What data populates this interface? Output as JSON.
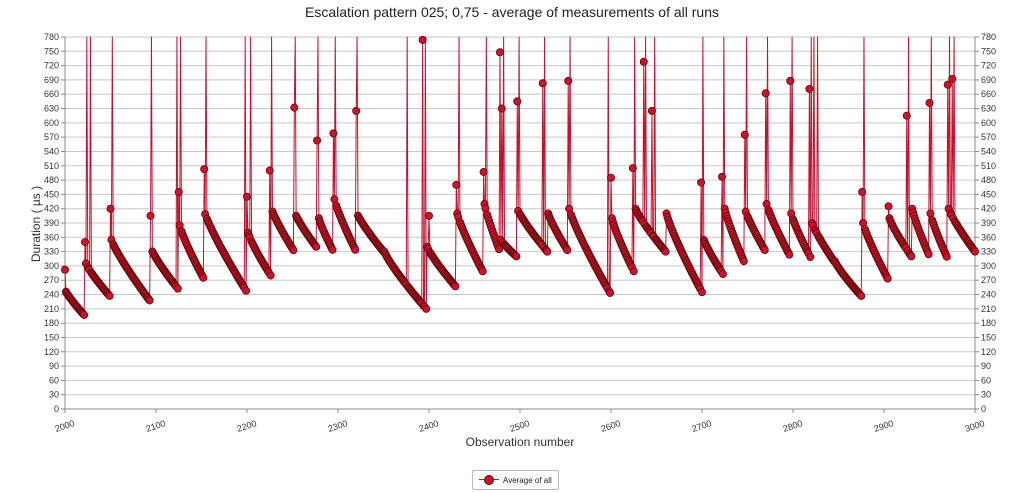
{
  "chart_data": {
    "type": "scatter",
    "title": "Escalation pattern 025; 0,75 - average of measurements of all runs",
    "xlabel": "Observation number",
    "ylabel": "Duration ( µs )",
    "xlim": [
      2000,
      3000
    ],
    "ylim": [
      0,
      780
    ],
    "x_ticks": [
      2000,
      2100,
      2200,
      2300,
      2400,
      2500,
      2600,
      2700,
      2800,
      2900,
      3000
    ],
    "y_ticks": [
      0,
      30,
      60,
      90,
      120,
      150,
      180,
      210,
      240,
      270,
      300,
      330,
      360,
      390,
      420,
      450,
      480,
      510,
      540,
      570,
      600,
      630,
      660,
      690,
      720,
      750,
      780
    ],
    "grid": "horizontal",
    "legend_position": "bottom",
    "colors": {
      "marker": "#d0112b",
      "line": "#c8102e",
      "marker_edge": "#5a0a0a"
    },
    "series": [
      {
        "name": "Average of all",
        "segments": [
          {
            "start": 2000,
            "end": 2022,
            "from": 250,
            "to": 195
          },
          {
            "start": 2023,
            "end": 2050,
            "from": 305,
            "to": 235
          },
          {
            "start": 2051,
            "end": 2094,
            "from": 355,
            "to": 225
          },
          {
            "start": 2095,
            "end": 2125,
            "from": 335,
            "to": 250
          },
          {
            "start": 2126,
            "end": 2152,
            "from": 385,
            "to": 275
          },
          {
            "start": 2153,
            "end": 2200,
            "from": 415,
            "to": 245
          },
          {
            "start": 2201,
            "end": 2226,
            "from": 370,
            "to": 280
          },
          {
            "start": 2227,
            "end": 2252,
            "from": 420,
            "to": 330
          },
          {
            "start": 2253,
            "end": 2278,
            "from": 410,
            "to": 335
          },
          {
            "start": 2279,
            "end": 2295,
            "from": 400,
            "to": 330
          },
          {
            "start": 2296,
            "end": 2320,
            "from": 440,
            "to": 330
          },
          {
            "start": 2321,
            "end": 2350,
            "from": 410,
            "to": 330
          },
          {
            "start": 2351,
            "end": 2397,
            "from": 330,
            "to": 210
          },
          {
            "start": 2398,
            "end": 2430,
            "from": 340,
            "to": 255
          },
          {
            "start": 2431,
            "end": 2460,
            "from": 410,
            "to": 285
          },
          {
            "start": 2461,
            "end": 2478,
            "from": 430,
            "to": 330
          },
          {
            "start": 2479,
            "end": 2496,
            "from": 355,
            "to": 320
          },
          {
            "start": 2497,
            "end": 2530,
            "from": 420,
            "to": 330
          },
          {
            "start": 2531,
            "end": 2553,
            "from": 410,
            "to": 330
          },
          {
            "start": 2554,
            "end": 2600,
            "from": 420,
            "to": 240
          },
          {
            "start": 2601,
            "end": 2626,
            "from": 400,
            "to": 285
          },
          {
            "start": 2627,
            "end": 2660,
            "from": 420,
            "to": 330
          },
          {
            "start": 2661,
            "end": 2700,
            "from": 410,
            "to": 245
          },
          {
            "start": 2701,
            "end": 2724,
            "from": 360,
            "to": 280
          },
          {
            "start": 2725,
            "end": 2746,
            "from": 420,
            "to": 310
          },
          {
            "start": 2747,
            "end": 2770,
            "from": 420,
            "to": 330
          },
          {
            "start": 2771,
            "end": 2797,
            "from": 430,
            "to": 320
          },
          {
            "start": 2798,
            "end": 2820,
            "from": 410,
            "to": 315
          },
          {
            "start": 2821,
            "end": 2845,
            "from": 390,
            "to": 310
          },
          {
            "start": 2846,
            "end": 2876,
            "from": 310,
            "to": 235
          },
          {
            "start": 2877,
            "end": 2905,
            "from": 390,
            "to": 270
          },
          {
            "start": 2906,
            "end": 2930,
            "from": 400,
            "to": 320
          },
          {
            "start": 2931,
            "end": 2950,
            "from": 420,
            "to": 320
          },
          {
            "start": 2951,
            "end": 2970,
            "from": 410,
            "to": 315
          },
          {
            "start": 2971,
            "end": 3000,
            "from": 420,
            "to": 330
          }
        ],
        "peaks": [
          {
            "x": 2000,
            "y": 292
          },
          {
            "x": 2022,
            "y": 350
          },
          {
            "x": 2024,
            "y": 780
          },
          {
            "x": 2028,
            "y": 780
          },
          {
            "x": 2050,
            "y": 420
          },
          {
            "x": 2052,
            "y": 780
          },
          {
            "x": 2094,
            "y": 405
          },
          {
            "x": 2095,
            "y": 780
          },
          {
            "x": 2123,
            "y": 780
          },
          {
            "x": 2125,
            "y": 455
          },
          {
            "x": 2127,
            "y": 780
          },
          {
            "x": 2153,
            "y": 503
          },
          {
            "x": 2155,
            "y": 780
          },
          {
            "x": 2198,
            "y": 780
          },
          {
            "x": 2200,
            "y": 445
          },
          {
            "x": 2204,
            "y": 780
          },
          {
            "x": 2225,
            "y": 500
          },
          {
            "x": 2227,
            "y": 780
          },
          {
            "x": 2252,
            "y": 632
          },
          {
            "x": 2253,
            "y": 780
          },
          {
            "x": 2277,
            "y": 563
          },
          {
            "x": 2278,
            "y": 780
          },
          {
            "x": 2295,
            "y": 578
          },
          {
            "x": 2297,
            "y": 780
          },
          {
            "x": 2320,
            "y": 625
          },
          {
            "x": 2321,
            "y": 780
          },
          {
            "x": 2376,
            "y": 780
          },
          {
            "x": 2393,
            "y": 774
          },
          {
            "x": 2396,
            "y": 780
          },
          {
            "x": 2400,
            "y": 405
          },
          {
            "x": 2430,
            "y": 470
          },
          {
            "x": 2433,
            "y": 780
          },
          {
            "x": 2460,
            "y": 497
          },
          {
            "x": 2463,
            "y": 780
          },
          {
            "x": 2478,
            "y": 748
          },
          {
            "x": 2480,
            "y": 630
          },
          {
            "x": 2482,
            "y": 780
          },
          {
            "x": 2497,
            "y": 645
          },
          {
            "x": 2499,
            "y": 780
          },
          {
            "x": 2525,
            "y": 683
          },
          {
            "x": 2527,
            "y": 780
          },
          {
            "x": 2553,
            "y": 688
          },
          {
            "x": 2555,
            "y": 780
          },
          {
            "x": 2597,
            "y": 780
          },
          {
            "x": 2600,
            "y": 485
          },
          {
            "x": 2624,
            "y": 505
          },
          {
            "x": 2626,
            "y": 780
          },
          {
            "x": 2636,
            "y": 728
          },
          {
            "x": 2638,
            "y": 780
          },
          {
            "x": 2645,
            "y": 625
          },
          {
            "x": 2648,
            "y": 780
          },
          {
            "x": 2699,
            "y": 475
          },
          {
            "x": 2701,
            "y": 780
          },
          {
            "x": 2722,
            "y": 487
          },
          {
            "x": 2724,
            "y": 780
          },
          {
            "x": 2747,
            "y": 575
          },
          {
            "x": 2749,
            "y": 780
          },
          {
            "x": 2770,
            "y": 662
          },
          {
            "x": 2772,
            "y": 780
          },
          {
            "x": 2797,
            "y": 688
          },
          {
            "x": 2799,
            "y": 780
          },
          {
            "x": 2818,
            "y": 671
          },
          {
            "x": 2820,
            "y": 780
          },
          {
            "x": 2823,
            "y": 780
          },
          {
            "x": 2827,
            "y": 780
          },
          {
            "x": 2876,
            "y": 455
          },
          {
            "x": 2878,
            "y": 780
          },
          {
            "x": 2905,
            "y": 425
          },
          {
            "x": 2925,
            "y": 615
          },
          {
            "x": 2927,
            "y": 780
          },
          {
            "x": 2950,
            "y": 642
          },
          {
            "x": 2952,
            "y": 780
          },
          {
            "x": 2970,
            "y": 680
          },
          {
            "x": 2972,
            "y": 780
          },
          {
            "x": 2975,
            "y": 692
          },
          {
            "x": 2977,
            "y": 780
          }
        ]
      }
    ]
  }
}
